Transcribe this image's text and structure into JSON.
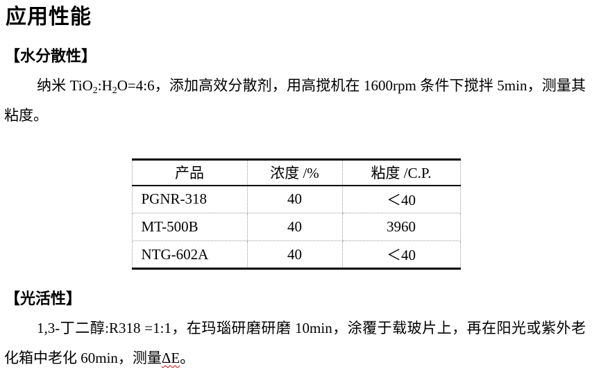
{
  "document": {
    "title": "应用性能",
    "sections": [
      {
        "heading": "【水分散性】",
        "paragraph": {
          "seg1": "纳米 TiO",
          "sub1": "2",
          "seg2": ":H",
          "sub2": "2",
          "seg3": "O=4:6，添加高效分散剂，用高搅机在 1600rpm 条件下搅拌 5min，测量其粘度。"
        }
      },
      {
        "heading": "【光活性】",
        "paragraph": {
          "seg1": "1,3-丁二醇:R318 =1:1，在玛瑙研磨研磨 10min，涂覆于载玻片上，再在阳光或紫外老化箱中老化 60min，测量",
          "misspelled": "ΔE",
          "seg2": "。"
        }
      }
    ]
  },
  "table": {
    "headers": [
      "产品",
      "浓度 /%",
      "粘度 /C.P."
    ],
    "rows": [
      [
        "PGNR-318",
        "40",
        "＜40"
      ],
      [
        "MT-500B",
        "40",
        "3960"
      ],
      [
        "NTG-602A",
        "40",
        "＜40"
      ]
    ]
  },
  "colors": {
    "text": "#000000",
    "table_strong_border": "#000000",
    "table_light_grid": "#9a9a9a",
    "spellcheck_underline": "#c00000",
    "background": "#ffffff"
  }
}
